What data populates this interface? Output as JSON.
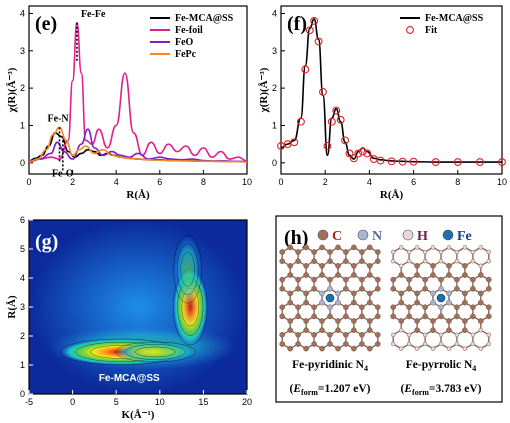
{
  "chart_data": [
    {
      "panel": "(e)",
      "type": "line",
      "xlabel": "R(Å)",
      "ylabel": "χ(R)(Å⁻³)",
      "xlim": [
        0,
        10
      ],
      "ylim": [
        -0.3,
        4.2
      ],
      "xticks": [
        "0",
        "2",
        "4",
        "6",
        "8",
        "10"
      ],
      "yticks": [
        "0",
        "1",
        "2",
        "3",
        "4"
      ],
      "legend_position": "top-right",
      "annotations": [
        {
          "text": "Fe-Fe",
          "x": 2.2,
          "y": 3.8
        },
        {
          "text": "Fe-N",
          "x": 1.4,
          "y": 1.0
        },
        {
          "text": "Fe-O",
          "x": 1.6,
          "y": -0.1
        }
      ],
      "series": [
        {
          "name": "Fe-MCA@SS",
          "color": "#000000",
          "x": [
            0,
            0.3,
            0.6,
            0.9,
            1.2,
            1.5,
            1.8,
            2.1,
            2.4,
            2.7,
            3.0,
            3.3,
            3.6,
            3.9,
            4.2,
            4.6,
            5.0,
            5.5,
            6.0,
            6.5,
            7.0,
            7.5,
            8.0,
            8.5,
            9.0,
            9.5,
            10
          ],
          "y": [
            0.05,
            0.12,
            0.2,
            0.45,
            0.8,
            0.7,
            0.3,
            0.15,
            0.25,
            0.35,
            0.3,
            0.2,
            0.25,
            0.2,
            0.15,
            0.12,
            0.1,
            0.08,
            0.08,
            0.06,
            0.06,
            0.05,
            0.05,
            0.04,
            0.04,
            0.03,
            0.03
          ]
        },
        {
          "name": "Fe-foil",
          "color": "#e0208c",
          "x": [
            0,
            0.5,
            1.0,
            1.4,
            1.8,
            2.0,
            2.2,
            2.4,
            2.6,
            2.9,
            3.2,
            3.6,
            4.0,
            4.4,
            4.8,
            5.2,
            5.6,
            6.0,
            6.4,
            6.8,
            7.2,
            7.6,
            8.0,
            8.4,
            8.8,
            9.2,
            9.6,
            10
          ],
          "y": [
            0.05,
            0.1,
            0.15,
            0.1,
            0.6,
            2.2,
            3.75,
            2.4,
            0.6,
            0.5,
            0.9,
            0.4,
            1.0,
            2.4,
            0.8,
            0.2,
            0.55,
            0.25,
            0.5,
            0.3,
            0.45,
            0.2,
            0.4,
            0.15,
            0.3,
            0.1,
            0.15,
            0.05
          ]
        },
        {
          "name": "FeO",
          "color": "#7b1fc8",
          "x": [
            0,
            0.5,
            1.0,
            1.3,
            1.6,
            2.0,
            2.4,
            2.7,
            3.0,
            3.4,
            3.8,
            4.2,
            4.6,
            5.0,
            5.5,
            6.0,
            6.5,
            7.0,
            7.5,
            8.0,
            8.5,
            9.0,
            9.5,
            10
          ],
          "y": [
            0.02,
            0.1,
            0.25,
            0.55,
            0.3,
            0.1,
            0.5,
            0.9,
            0.4,
            0.2,
            0.3,
            0.2,
            0.15,
            0.25,
            0.1,
            0.15,
            0.1,
            0.08,
            0.1,
            0.06,
            0.05,
            0.05,
            0.04,
            0.03
          ]
        },
        {
          "name": "FePc",
          "color": "#f58a1f",
          "x": [
            0,
            0.4,
            0.8,
            1.1,
            1.4,
            1.7,
            2.0,
            2.3,
            2.6,
            3.0,
            3.4,
            3.8,
            4.2,
            4.6,
            5.0,
            5.5,
            6.0,
            6.5,
            7.0,
            7.5,
            8.0,
            8.5,
            9.0,
            9.5,
            10
          ],
          "y": [
            0.02,
            0.1,
            0.35,
            0.75,
            0.95,
            0.6,
            0.2,
            0.35,
            0.45,
            0.25,
            0.35,
            0.2,
            0.15,
            0.12,
            0.1,
            0.08,
            0.07,
            0.06,
            0.05,
            0.05,
            0.04,
            0.04,
            0.03,
            0.03,
            0.02
          ]
        }
      ]
    },
    {
      "panel": "(f)",
      "type": "line",
      "xlabel": "R(Å)",
      "ylabel": "χ(R)(Å⁻³)",
      "xlim": [
        0,
        10
      ],
      "ylim": [
        -0.3,
        4.2
      ],
      "xticks": [
        "0",
        "2",
        "4",
        "6",
        "8",
        "10"
      ],
      "yticks": [
        "0",
        "1",
        "2",
        "3",
        "4"
      ],
      "legend_position": "top-right",
      "series": [
        {
          "name": "Fe-MCA@SS",
          "color": "#000000",
          "style": "line",
          "x": [
            0,
            0.3,
            0.6,
            0.9,
            1.1,
            1.3,
            1.5,
            1.7,
            1.9,
            2.1,
            2.3,
            2.5,
            2.7,
            2.9,
            3.1,
            3.3,
            3.5,
            3.7,
            3.9,
            4.2,
            4.5,
            5.0,
            5.5,
            6.0,
            7.0,
            8.0,
            9.0,
            10
          ],
          "y": [
            0.4,
            0.5,
            0.6,
            1.2,
            2.6,
            3.6,
            3.85,
            3.3,
            1.8,
            0.2,
            1.2,
            1.45,
            1.1,
            0.55,
            0.2,
            0.1,
            0.3,
            0.4,
            0.3,
            0.12,
            0.08,
            0.05,
            0.04,
            0.03,
            0.02,
            0.02,
            0.02,
            0.02
          ]
        },
        {
          "name": "Fit",
          "color": "#e02020",
          "style": "open-circle",
          "x": [
            0,
            0.3,
            0.6,
            0.9,
            1.1,
            1.3,
            1.5,
            1.7,
            1.9,
            2.1,
            2.3,
            2.5,
            2.7,
            2.9,
            3.1,
            3.3,
            3.5,
            3.7,
            3.9,
            4.2,
            4.5,
            5.0,
            5.5,
            6.0,
            7.0,
            8.0,
            9.0,
            10
          ],
          "y": [
            0.45,
            0.5,
            0.55,
            1.1,
            2.5,
            3.55,
            3.8,
            3.25,
            1.9,
            0.45,
            1.1,
            1.4,
            1.15,
            0.6,
            0.25,
            0.12,
            0.25,
            0.3,
            0.25,
            0.1,
            0.06,
            0.04,
            0.03,
            0.03,
            0.02,
            0.02,
            0.02,
            0.02
          ]
        }
      ]
    },
    {
      "panel": "(g)",
      "type": "heatmap",
      "xlabel": "K(Å⁻¹)",
      "ylabel": "R(Å)",
      "xlim": [
        -5,
        20
      ],
      "ylim": [
        0,
        6
      ],
      "xticks": [
        "-5",
        "0",
        "5",
        "10",
        "15",
        "20"
      ],
      "yticks": [
        "0",
        "1",
        "2",
        "3",
        "4",
        "5",
        "6"
      ],
      "label": "Fe-MCA@SS",
      "blobs": [
        {
          "k": 5.5,
          "r": 1.45,
          "intensity": 1.0
        },
        {
          "k": 9.5,
          "r": 1.45,
          "intensity": 0.7
        },
        {
          "k": 13.5,
          "r": 3.0,
          "intensity": 0.9
        },
        {
          "k": 13.2,
          "r": 4.3,
          "intensity": 0.45
        }
      ]
    }
  ],
  "panel_h": {
    "label": "(h)",
    "legend": [
      {
        "symbol": "C",
        "color": "#a0705a"
      },
      {
        "symbol": "N",
        "color": "#a8b4d6"
      },
      {
        "symbol": "H",
        "color": "#e8d8d8"
      },
      {
        "symbol": "Fe",
        "color": "#1e6fb0"
      }
    ],
    "structures": [
      {
        "name": "Fe-pyridinic N",
        "subscript": "4",
        "energy_prefix": "(",
        "energy_sym": "E",
        "energy_sub": "form",
        "energy_value": "=1.207 eV)"
      },
      {
        "name": "Fe-pyrrolic N",
        "subscript": "4",
        "energy_prefix": "(",
        "energy_sym": "E",
        "energy_sub": "form",
        "energy_value": "=3.783 eV)"
      }
    ]
  }
}
